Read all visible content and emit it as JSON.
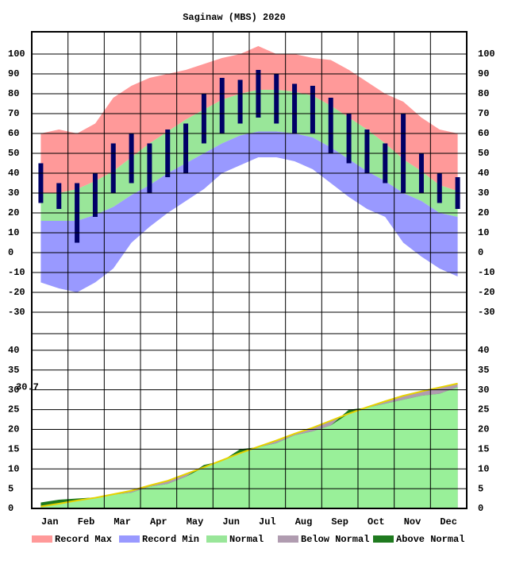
{
  "chart_data": [
    {
      "type": "temperature-band",
      "title": "Saginaw (MBS) 2020",
      "categories": [
        "Jan",
        null,
        "Feb",
        null,
        "Mar",
        null,
        "Apr",
        null,
        "May",
        null,
        "Jun",
        null,
        "Jul",
        null,
        "Aug",
        null,
        "Sep",
        null,
        "Oct",
        null,
        "Nov",
        null,
        "Dec",
        null
      ],
      "series": [
        {
          "name": "Record Max",
          "color": "#ff9999",
          "values": [
            60,
            62,
            60,
            65,
            78,
            84,
            88,
            90,
            92,
            95,
            98,
            100,
            104,
            100,
            100,
            98,
            97,
            92,
            86,
            80,
            76,
            68,
            62,
            60
          ]
        },
        {
          "name": "Record Min",
          "color": "#9999ff",
          "values": [
            -15,
            -18,
            -20,
            -15,
            -8,
            5,
            13,
            20,
            26,
            32,
            40,
            44,
            48,
            48,
            46,
            42,
            35,
            28,
            22,
            18,
            5,
            -2,
            -8,
            -12
          ]
        },
        {
          "name": "Normal",
          "color": "#99e699",
          "high": [
            30,
            30,
            32,
            36,
            41,
            48,
            55,
            61,
            67,
            72,
            77,
            80,
            82,
            82,
            81,
            79,
            74,
            68,
            62,
            55,
            47,
            41,
            34,
            31
          ],
          "low": [
            16,
            16,
            16,
            19,
            23,
            29,
            34,
            40,
            45,
            50,
            55,
            59,
            61,
            61,
            60,
            58,
            53,
            47,
            41,
            36,
            30,
            26,
            20,
            18
          ]
        }
      ],
      "observed": {
        "color": "#000066",
        "high": [
          45,
          35,
          35,
          40,
          55,
          60,
          55,
          62,
          65,
          80,
          88,
          87,
          92,
          90,
          85,
          84,
          78,
          70,
          62,
          55,
          70,
          50,
          40,
          38
        ],
        "low": [
          25,
          22,
          5,
          18,
          30,
          35,
          30,
          38,
          40,
          55,
          60,
          65,
          68,
          65,
          60,
          60,
          50,
          45,
          40,
          35,
          30,
          30,
          25,
          22
        ]
      },
      "ylim": [
        -40.8,
        111.2
      ],
      "yticks": [
        100,
        90,
        80,
        70,
        60,
        50,
        40,
        30,
        20,
        10,
        0,
        -10,
        -20,
        -30
      ],
      "grid": true
    },
    {
      "type": "cumulative-precip",
      "normal": [
        0.5,
        1.2,
        2.0,
        2.7,
        3.6,
        4.5,
        5.8,
        7.0,
        8.7,
        10.4,
        12.2,
        14.0,
        15.6,
        17.2,
        18.9,
        20.4,
        22.2,
        24.0,
        25.6,
        27.1,
        28.5,
        29.6,
        30.6,
        31.6
      ],
      "actual": [
        1.5,
        2.2,
        2.5,
        2.8,
        3.5,
        4.0,
        5.5,
        6.2,
        8.0,
        11.0,
        12.0,
        15.0,
        15.5,
        16.5,
        18.5,
        19.5,
        21.0,
        25.0,
        25.5,
        26.5,
        27.5,
        28.5,
        29.0,
        30.7
      ],
      "normal_line_color": "#e6d200",
      "fill_color": "#99f099",
      "legend": [
        {
          "name": "Below Normal",
          "color": "#b09cb0"
        },
        {
          "name": "Above Normal",
          "color": "#1f7a1f"
        }
      ],
      "annotation": 30.7,
      "ylim": [
        0,
        44.2
      ],
      "yticks": [
        0,
        5,
        10,
        15,
        20,
        25,
        30,
        35,
        40
      ],
      "grid": true
    }
  ]
}
